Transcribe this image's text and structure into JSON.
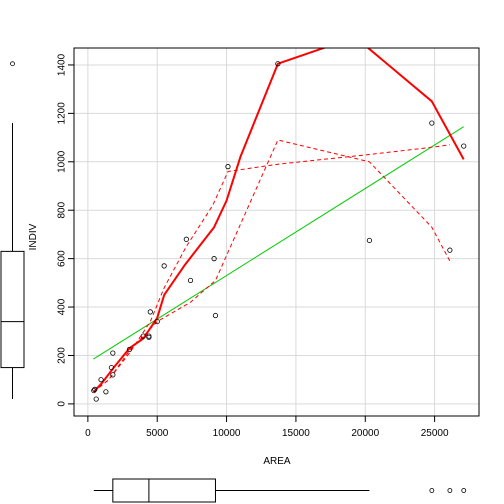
{
  "chart_data": {
    "type": "scatter",
    "title": "",
    "xlabel": "AREA",
    "ylabel": "INDIV",
    "xlim": [
      -1000,
      28200
    ],
    "ylim": [
      -50,
      1470
    ],
    "x_ticks": [
      0,
      5000,
      10000,
      15000,
      20000,
      25000
    ],
    "x_tick_labels": [
      "0",
      "5000",
      "10000",
      "15000",
      "20000",
      "25000"
    ],
    "y_ticks": [
      0,
      200,
      400,
      600,
      800,
      1000,
      1200,
      1400
    ],
    "y_tick_labels": [
      "0",
      "200",
      "400",
      "600",
      "800",
      "1000",
      "1200",
      "1400"
    ],
    "grid": true,
    "points": [
      {
        "x": 430,
        "y": 55
      },
      {
        "x": 500,
        "y": 60
      },
      {
        "x": 600,
        "y": 20
      },
      {
        "x": 950,
        "y": 100
      },
      {
        "x": 1300,
        "y": 50
      },
      {
        "x": 1700,
        "y": 150
      },
      {
        "x": 1800,
        "y": 210
      },
      {
        "x": 1800,
        "y": 120
      },
      {
        "x": 3000,
        "y": 225
      },
      {
        "x": 4000,
        "y": 280
      },
      {
        "x": 4400,
        "y": 275
      },
      {
        "x": 4400,
        "y": 280
      },
      {
        "x": 4500,
        "y": 380
      },
      {
        "x": 5000,
        "y": 340
      },
      {
        "x": 5500,
        "y": 570
      },
      {
        "x": 7100,
        "y": 680
      },
      {
        "x": 7400,
        "y": 510
      },
      {
        "x": 9100,
        "y": 600
      },
      {
        "x": 9200,
        "y": 365
      },
      {
        "x": 10100,
        "y": 980
      },
      {
        "x": 13700,
        "y": 1405
      },
      {
        "x": 20300,
        "y": 675
      },
      {
        "x": 24800,
        "y": 1160
      },
      {
        "x": 26100,
        "y": 635
      },
      {
        "x": 27100,
        "y": 1065
      }
    ],
    "series": [
      {
        "kind": "linear-fit",
        "color": "#00cc00",
        "width": 1,
        "dash": false,
        "x": [
          400,
          27100
        ],
        "y": [
          185,
          1145
        ]
      },
      {
        "kind": "smooth",
        "color": "#ff0000",
        "width": 2,
        "dash": false,
        "x": [
          430,
          1000,
          2000,
          3000,
          4000,
          5000,
          5500,
          7000,
          9100,
          10000,
          11000,
          13700,
          17500,
          20000,
          24800,
          27100
        ],
        "y": [
          50,
          85,
          160,
          230,
          270,
          355,
          450,
          575,
          730,
          840,
          1020,
          1405,
          1480,
          1480,
          1250,
          1010
        ]
      },
      {
        "kind": "spread-upper",
        "color": "#ff0000",
        "width": 1,
        "dash": true,
        "x": [
          430,
          1500,
          3000,
          4500,
          5500,
          7100,
          9000,
          10100,
          13700,
          20300,
          24800,
          26100
        ],
        "y": [
          50,
          100,
          210,
          340,
          480,
          650,
          820,
          960,
          990,
          1030,
          1060,
          1070
        ]
      },
      {
        "kind": "spread-lower",
        "color": "#ff0000",
        "width": 1,
        "dash": true,
        "x": [
          430,
          1500,
          3000,
          5000,
          7400,
          9200,
          13700,
          20300,
          24800,
          26100
        ],
        "y": [
          50,
          100,
          220,
          340,
          420,
          510,
          1090,
          1000,
          730,
          590
        ]
      }
    ],
    "y_boxplot": {
      "whisker_low": 20,
      "q1": 150,
      "median": 340,
      "q3": 630,
      "whisker_high": 1160,
      "outliers": [
        1405
      ]
    },
    "x_boxplot": {
      "whisker_low": 430,
      "q1": 1800,
      "median": 4400,
      "q3": 9200,
      "whisker_high": 20300,
      "outliers": [
        24800,
        26100,
        27100
      ]
    }
  }
}
